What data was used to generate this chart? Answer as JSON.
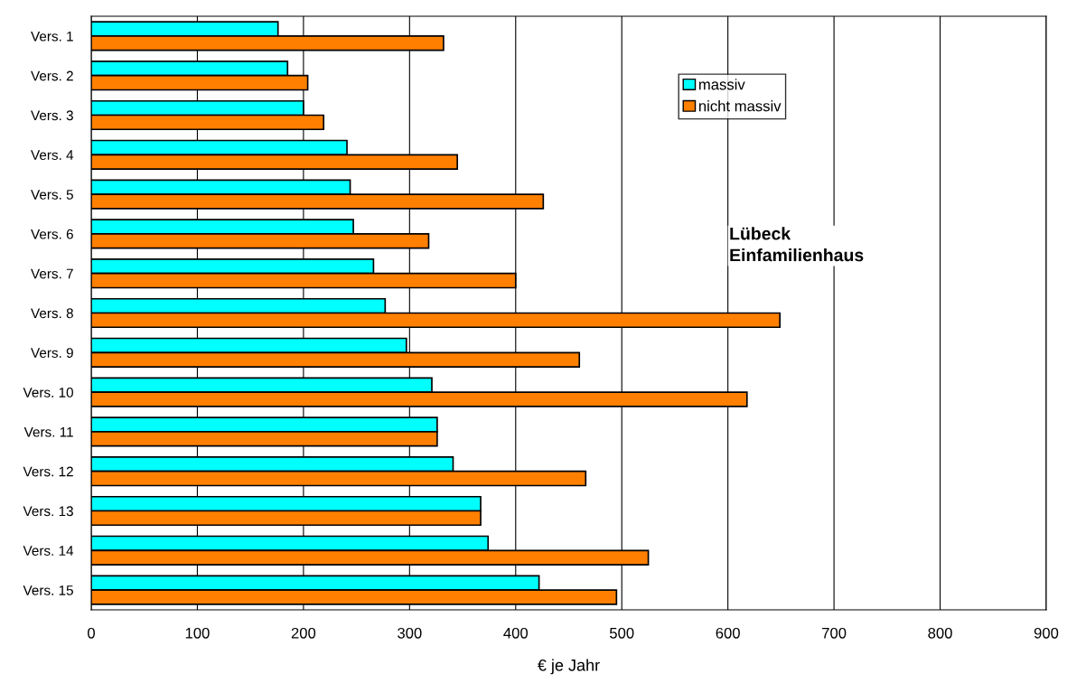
{
  "chart_data": {
    "type": "bar",
    "orientation": "horizontal",
    "xlabel": "€ je Jahr",
    "categories": [
      "Vers. 1",
      "Vers. 2",
      "Vers. 3",
      "Vers. 4",
      "Vers. 5",
      "Vers. 6",
      "Vers. 7",
      "Vers. 8",
      "Vers. 9",
      "Vers. 10",
      "Vers. 11",
      "Vers. 12",
      "Vers. 13",
      "Vers. 14",
      "Vers. 15"
    ],
    "series": [
      {
        "name": "massiv",
        "color": "#00ffff",
        "values": [
          176,
          185,
          200,
          241,
          244,
          247,
          266,
          277,
          297,
          321,
          326,
          341,
          367,
          374,
          422
        ]
      },
      {
        "name": "nicht massiv",
        "color": "#ff8000",
        "values": [
          332,
          204,
          219,
          345,
          426,
          318,
          400,
          649,
          460,
          618,
          326,
          466,
          367,
          525,
          495
        ]
      }
    ],
    "xlim": [
      0,
      900
    ],
    "xticks": [
      0,
      100,
      200,
      300,
      400,
      500,
      600,
      700,
      800,
      900
    ],
    "grid": "x",
    "legend": "top right",
    "annotations": [
      "Lübeck\nEinfamilienhaus"
    ]
  }
}
